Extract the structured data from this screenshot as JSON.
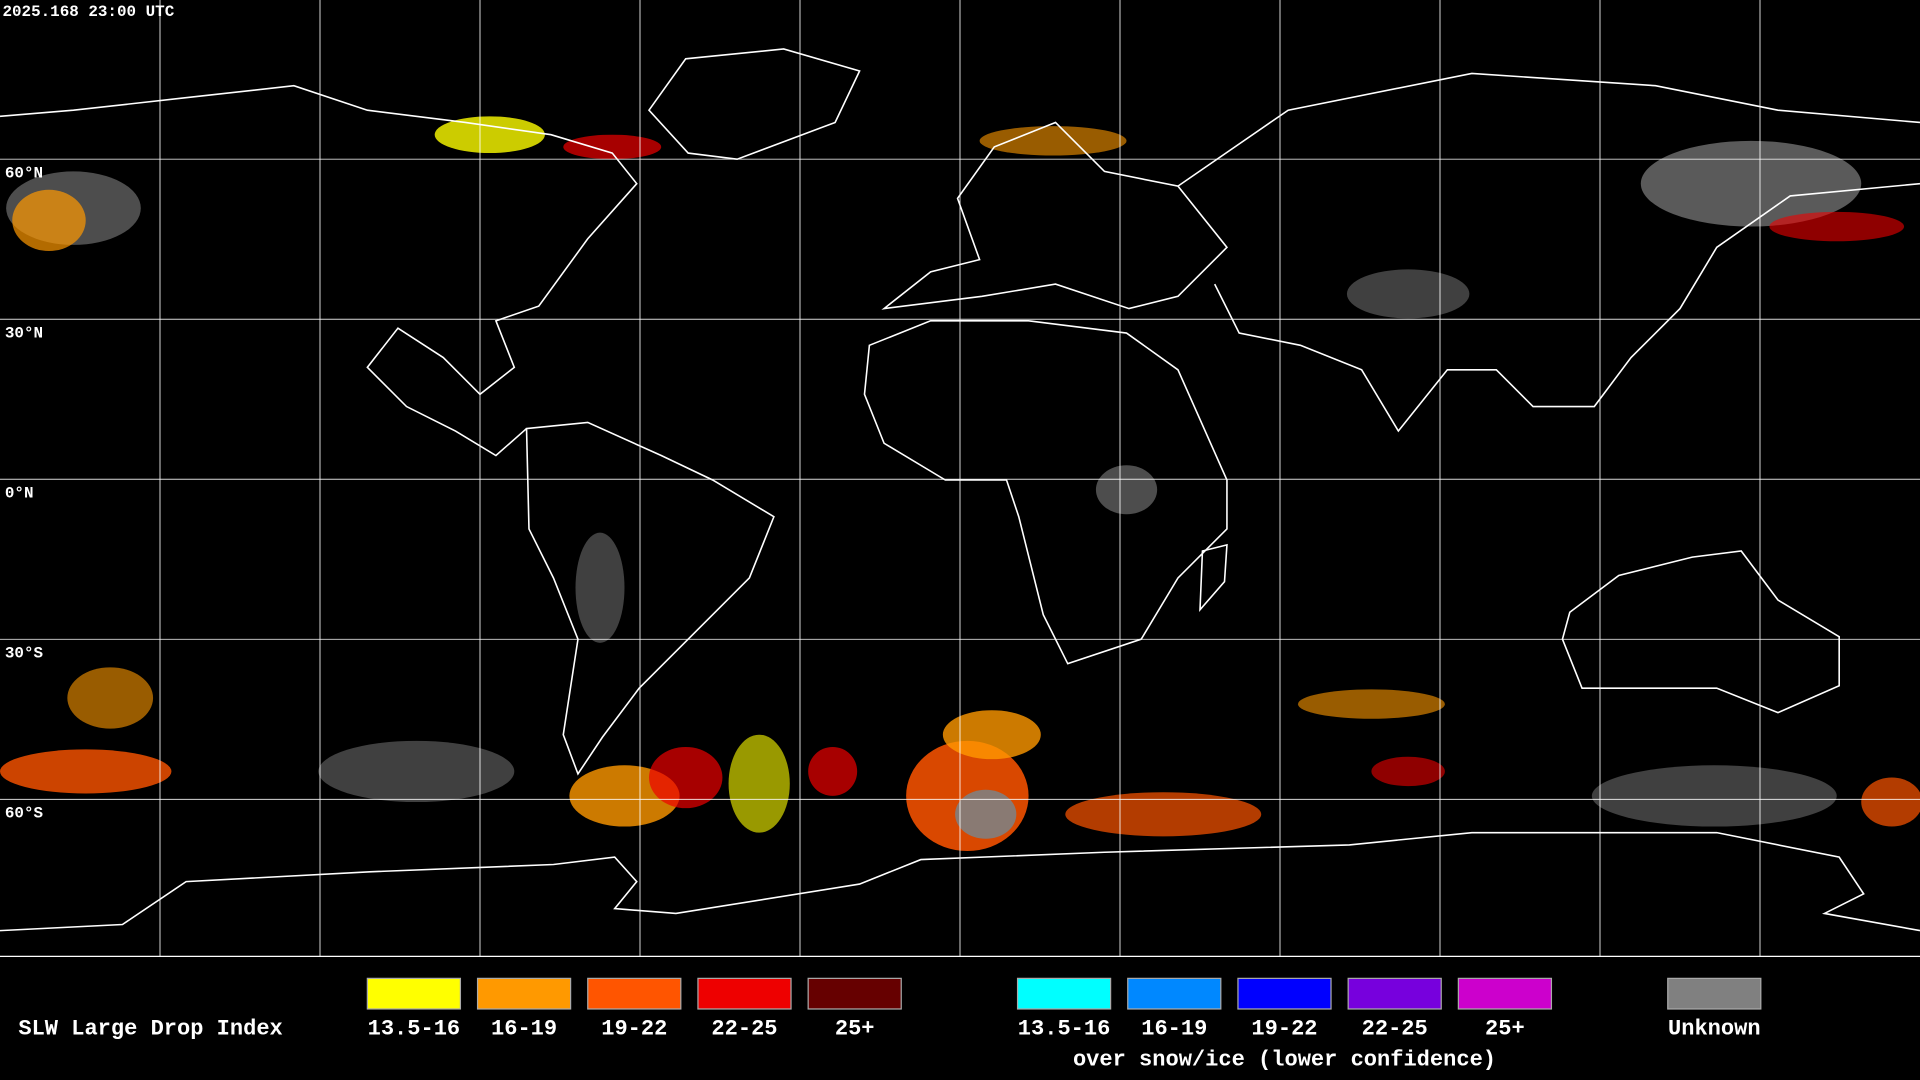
{
  "header": {
    "timestamp": "2025.168 23:00 UTC"
  },
  "latitudes": [
    "60°N",
    "30°N",
    "0°N",
    "30°S",
    "60°S"
  ],
  "legend": {
    "title": "SLW Large Drop Index",
    "main": [
      {
        "label": "13.5-16",
        "color": "#ffff00"
      },
      {
        "label": "16-19",
        "color": "#ff9900"
      },
      {
        "label": "19-22",
        "color": "#ff5500"
      },
      {
        "label": "22-25",
        "color": "#ee0000"
      },
      {
        "label": "25+",
        "color": "#660000"
      }
    ],
    "snow": [
      {
        "label": "13.5-16",
        "color": "#00ffff"
      },
      {
        "label": "16-19",
        "color": "#0088ff"
      },
      {
        "label": "19-22",
        "color": "#0000ff"
      },
      {
        "label": "22-25",
        "color": "#7700dd"
      },
      {
        "label": "25+",
        "color": "#cc00cc"
      }
    ],
    "snow_caption": "over snow/ice (lower confidence)",
    "unknown": {
      "label": "Unknown",
      "color": "#808080"
    }
  }
}
